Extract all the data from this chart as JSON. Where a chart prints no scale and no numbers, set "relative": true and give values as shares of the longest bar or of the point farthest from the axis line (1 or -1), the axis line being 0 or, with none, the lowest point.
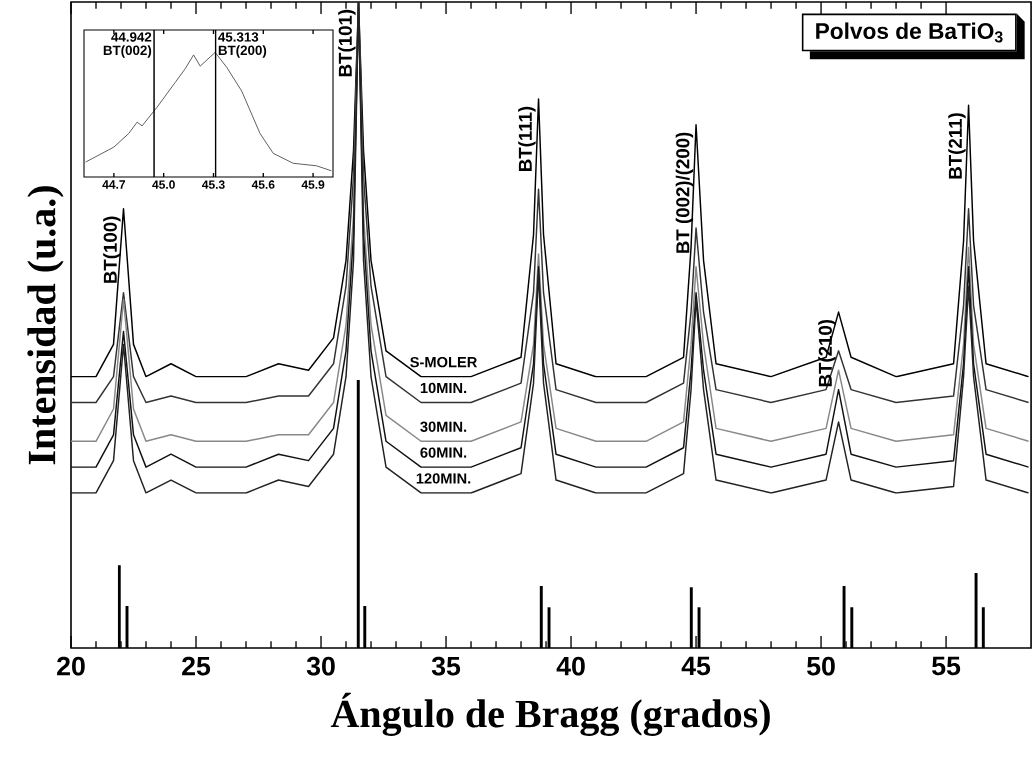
{
  "chart_data": [
    {
      "type": "line",
      "relative": true,
      "title": "Polvos de BaTiO$_{3}$",
      "xlabel": "Ángulo de Bragg (grados)",
      "ylabel": "Intensidad (u.a.)",
      "xlim": [
        20,
        58.4
      ],
      "xticks": [
        20,
        25,
        30,
        35,
        40,
        45,
        50,
        55
      ],
      "x": [
        20,
        21,
        21.7,
        22.1,
        22.5,
        23,
        24,
        25,
        27,
        28.3,
        29.5,
        30.5,
        31.0,
        31.3,
        31.5,
        31.7,
        32.0,
        32.6,
        34,
        36,
        38.0,
        38.5,
        38.7,
        38.9,
        39.4,
        41,
        43,
        44.5,
        44.8,
        45.0,
        45.3,
        45.8,
        48,
        50.2,
        50.7,
        51.2,
        53,
        55.3,
        55.7,
        55.9,
        56.1,
        56.6,
        58.3
      ],
      "series": [
        {
          "name": "S-MOLER",
          "color": "#000000",
          "values": [
            0.42,
            0.42,
            0.47,
            0.68,
            0.47,
            0.42,
            0.44,
            0.42,
            0.42,
            0.44,
            0.43,
            0.48,
            0.6,
            0.77,
            1,
            0.77,
            0.6,
            0.46,
            0.42,
            0.42,
            0.45,
            0.64,
            0.85,
            0.64,
            0.44,
            0.42,
            0.42,
            0.45,
            0.62,
            0.81,
            0.6,
            0.44,
            0.42,
            0.45,
            0.52,
            0.45,
            0.42,
            0.44,
            0.63,
            0.84,
            0.63,
            0.44,
            0.42
          ]
        },
        {
          "name": "10MIN.",
          "color": "#333333",
          "values": [
            0.38,
            0.38,
            0.42,
            0.55,
            0.42,
            0.38,
            0.39,
            0.38,
            0.38,
            0.39,
            0.39,
            0.44,
            0.56,
            0.73,
            1,
            0.73,
            0.56,
            0.42,
            0.38,
            0.38,
            0.41,
            0.55,
            0.71,
            0.55,
            0.4,
            0.38,
            0.38,
            0.41,
            0.52,
            0.65,
            0.52,
            0.4,
            0.38,
            0.4,
            0.46,
            0.4,
            0.38,
            0.39,
            0.53,
            0.68,
            0.53,
            0.4,
            0.38
          ]
        },
        {
          "name": "30MIN.",
          "color": "#888888",
          "values": [
            0.32,
            0.32,
            0.37,
            0.54,
            0.37,
            0.32,
            0.33,
            0.32,
            0.32,
            0.33,
            0.33,
            0.38,
            0.5,
            0.67,
            1,
            0.67,
            0.5,
            0.36,
            0.32,
            0.32,
            0.35,
            0.47,
            0.61,
            0.47,
            0.34,
            0.32,
            0.32,
            0.35,
            0.47,
            0.59,
            0.47,
            0.34,
            0.32,
            0.34,
            0.43,
            0.34,
            0.32,
            0.33,
            0.47,
            0.62,
            0.47,
            0.34,
            0.32
          ]
        },
        {
          "name": "60MIN.",
          "color": "#111111",
          "values": [
            0.28,
            0.28,
            0.33,
            0.49,
            0.33,
            0.28,
            0.3,
            0.28,
            0.28,
            0.3,
            0.29,
            0.34,
            0.46,
            0.64,
            1,
            0.64,
            0.46,
            0.32,
            0.28,
            0.28,
            0.31,
            0.44,
            0.59,
            0.44,
            0.3,
            0.28,
            0.28,
            0.31,
            0.43,
            0.55,
            0.43,
            0.3,
            0.28,
            0.3,
            0.4,
            0.3,
            0.28,
            0.29,
            0.44,
            0.59,
            0.44,
            0.3,
            0.28
          ]
        },
        {
          "name": "120MIN.",
          "color": "#222222",
          "values": [
            0.24,
            0.24,
            0.29,
            0.47,
            0.29,
            0.24,
            0.26,
            0.24,
            0.24,
            0.26,
            0.25,
            0.3,
            0.42,
            0.6,
            1,
            0.6,
            0.42,
            0.28,
            0.24,
            0.24,
            0.27,
            0.41,
            0.58,
            0.41,
            0.26,
            0.24,
            0.24,
            0.27,
            0.4,
            0.54,
            0.4,
            0.26,
            0.24,
            0.26,
            0.35,
            0.26,
            0.24,
            0.25,
            0.42,
            0.56,
            0.42,
            0.26,
            0.24
          ]
        },
        {
          "type": "bar",
          "color": "#000000",
          "x": [
            21.93,
            22.24,
            31.49,
            31.75,
            38.81,
            39.12,
            44.81,
            45.12,
            50.92,
            51.23,
            56.2,
            56.49
          ],
          "values": [
            0.128,
            0.065,
            0.415,
            0.065,
            0.096,
            0.063,
            0.094,
            0.063,
            0.096,
            0.063,
            0.116,
            0.063
          ]
        }
      ],
      "annotations": [
        {
          "text": "BT(100)",
          "x": 22.1,
          "y": 0.68
        },
        {
          "text": "BT(101)",
          "x": 31.5,
          "y": 1
        },
        {
          "text": "BT(111)",
          "x": 38.7,
          "y": 0.85
        },
        {
          "text": "BT (002)/(200)",
          "x": 45.0,
          "y": 0.81
        },
        {
          "text": "BT(210)",
          "x": 50.7,
          "y": 0.52
        },
        {
          "text": "BT(211)",
          "x": 55.9,
          "y": 0.84
        }
      ]
    },
    {
      "type": "line",
      "relative": true,
      "xlim": [
        44.52,
        46.02
      ],
      "xticks": [
        44.7,
        {
          "value": 45,
          "label": "45.0"
        },
        45.3,
        45.6,
        45.9
      ],
      "tick_labels": "x",
      "series": [
        {
          "color": "#555555",
          "x": [
            44.53,
            44.7,
            44.79,
            44.84,
            44.87,
            44.96,
            45.07,
            45.13,
            45.18,
            45.22,
            45.31,
            45.38,
            45.47,
            45.58,
            45.66,
            45.78,
            45.92,
            46.01
          ],
          "values": [
            0.12,
            0.24,
            0.35,
            0.44,
            0.41,
            0.56,
            0.76,
            0.87,
            0.98,
            0.89,
            1,
            0.88,
            0.69,
            0.35,
            0.19,
            0.11,
            0.09,
            0.05
          ]
        }
      ],
      "ref_lines": [
        {
          "axis": "x",
          "value": 44.942,
          "label": "44.942 BT(002)"
        },
        {
          "axis": "x",
          "value": 45.313,
          "label": "45.313 BT(200)"
        }
      ]
    }
  ]
}
